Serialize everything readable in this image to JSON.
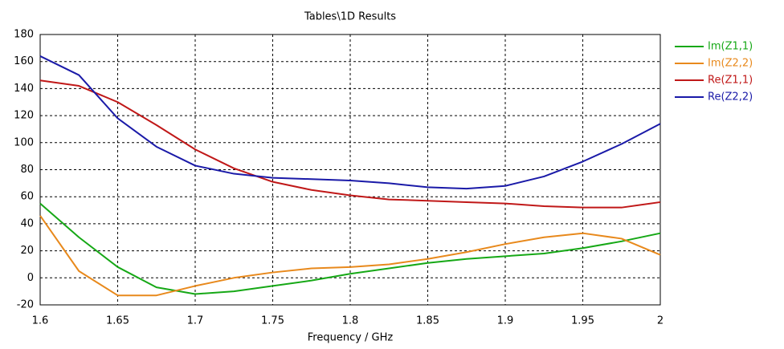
{
  "chart_data": {
    "type": "line",
    "title": "Tables\\1D Results",
    "xlabel": "Frequency / GHz",
    "x": [
      1.6,
      1.625,
      1.65,
      1.675,
      1.7,
      1.725,
      1.75,
      1.775,
      1.8,
      1.825,
      1.85,
      1.875,
      1.9,
      1.925,
      1.95,
      1.975,
      2
    ],
    "series": [
      {
        "name": "Im(Z1,1)",
        "color": "#16a816",
        "values": [
          55,
          30,
          8,
          -7,
          -12,
          -10,
          -6,
          -2,
          3,
          7,
          11,
          14,
          16,
          18,
          22,
          27,
          33
        ]
      },
      {
        "name": "Im(Z2,2)",
        "color": "#e8891c",
        "values": [
          46,
          5,
          -13,
          -13,
          -6,
          0,
          4,
          7,
          8,
          10,
          14,
          19,
          25,
          30,
          33,
          29,
          17
        ]
      },
      {
        "name": "Re(Z1,1)",
        "color": "#c01818",
        "values": [
          146,
          142,
          130,
          113,
          95,
          81,
          71,
          65,
          61,
          58,
          57,
          56,
          55,
          53,
          52,
          52,
          56
        ]
      },
      {
        "name": "Re(Z2,2)",
        "color": "#1a1aa8",
        "values": [
          164,
          150,
          118,
          97,
          83,
          77,
          74,
          73,
          72,
          70,
          67,
          66,
          68,
          75,
          86,
          99,
          114
        ]
      }
    ],
    "xlim": [
      1.6,
      2
    ],
    "xticks": [
      1.6,
      1.65,
      1.7,
      1.75,
      1.8,
      1.85,
      1.9,
      1.95,
      2
    ],
    "ylim": [
      -20,
      180
    ],
    "yticks": [
      -20,
      0,
      20,
      40,
      60,
      80,
      100,
      120,
      140,
      160,
      180
    ],
    "grid": true,
    "legend": "right"
  }
}
